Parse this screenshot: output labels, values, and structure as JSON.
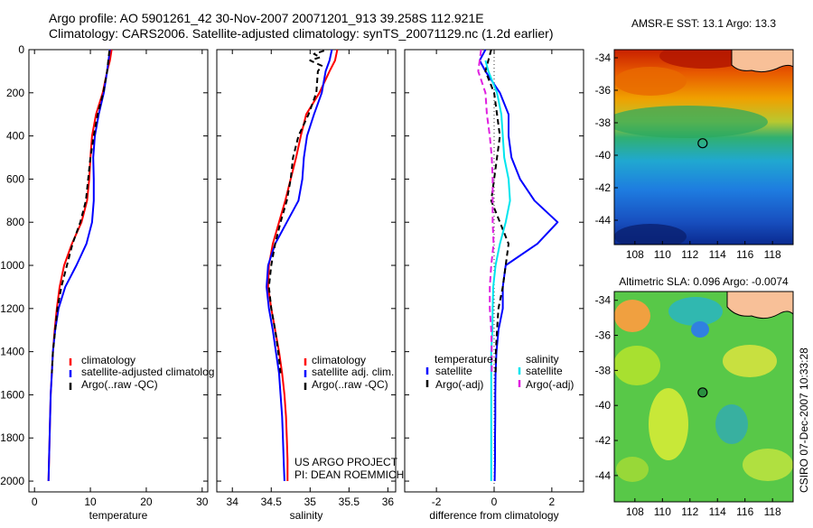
{
  "header": {
    "line1": "Argo profile: AO 5901261_42 30-Nov-2007 20071201_913 39.258S 112.921E",
    "line2": "Climatology: CARS2006. Satellite-adjusted climatology: synTS_20071129.nc (1.2d earlier)"
  },
  "side_caption": "CSIRO 07-Dec-2007 10:33:28",
  "project_note": [
    "US ARGO PROJECT",
    "PI: DEAN ROEMMICH"
  ],
  "colors": {
    "climatology": "#ff0000",
    "satellite": "#0000ff",
    "argo": "#000000",
    "sal_satellite": "#00e5ee",
    "sal_argo": "#e020e0"
  },
  "chart_data": [
    {
      "id": "temperature",
      "type": "line",
      "xlabel": "temperature",
      "ylabel": "",
      "xlim": [
        -1,
        31
      ],
      "ylim": [
        2050,
        0
      ],
      "xticks": [
        0,
        10,
        20,
        30
      ],
      "yticks": [
        0,
        200,
        400,
        600,
        800,
        1000,
        1200,
        1400,
        1600,
        1800,
        2000
      ],
      "legend": {
        "placement": "lower-right",
        "entries": [
          "climatology",
          "satellite-adjusted climatolog",
          "Argo(..raw -QC)"
        ]
      },
      "series": [
        {
          "name": "climatology",
          "color": "climatology",
          "dash": "",
          "points": [
            [
              13.8,
              0
            ],
            [
              13.5,
              50
            ],
            [
              13,
              100
            ],
            [
              12.2,
              200
            ],
            [
              11,
              300
            ],
            [
              10.3,
              400
            ],
            [
              10,
              500
            ],
            [
              9.8,
              600
            ],
            [
              9.4,
              700
            ],
            [
              8.4,
              800
            ],
            [
              6.7,
              900
            ],
            [
              5.3,
              1000
            ],
            [
              4.5,
              1100
            ],
            [
              4,
              1200
            ],
            [
              3.6,
              1300
            ],
            [
              3.3,
              1400
            ],
            [
              3.1,
              1500
            ],
            [
              2.9,
              1600
            ],
            [
              2.8,
              1700
            ],
            [
              2.7,
              1800
            ],
            [
              2.6,
              1900
            ],
            [
              2.5,
              2000
            ]
          ]
        },
        {
          "name": "satellite-adjusted climatolog",
          "color": "satellite",
          "dash": "",
          "points": [
            [
              13.5,
              0
            ],
            [
              13,
              100
            ],
            [
              12.4,
              200
            ],
            [
              11.5,
              300
            ],
            [
              10.8,
              400
            ],
            [
              10.5,
              500
            ],
            [
              10.6,
              600
            ],
            [
              10.6,
              700
            ],
            [
              10.3,
              800
            ],
            [
              9.3,
              900
            ],
            [
              7.5,
              1000
            ],
            [
              5.5,
              1100
            ],
            [
              4.3,
              1200
            ],
            [
              3.7,
              1300
            ],
            [
              3.3,
              1400
            ],
            [
              3.1,
              1500
            ],
            [
              2.9,
              1600
            ],
            [
              2.8,
              1700
            ],
            [
              2.7,
              1800
            ],
            [
              2.6,
              1900
            ],
            [
              2.5,
              2000
            ]
          ]
        },
        {
          "name": "Argo(..raw -QC)",
          "color": "argo",
          "dash": "6,4",
          "points": [
            [
              13.4,
              5
            ],
            [
              13,
              100
            ],
            [
              12.3,
              200
            ],
            [
              11.3,
              300
            ],
            [
              10.6,
              400
            ],
            [
              10,
              500
            ],
            [
              9.6,
              600
            ],
            [
              9.2,
              700
            ],
            [
              8.2,
              800
            ],
            [
              6.8,
              900
            ],
            [
              5.8,
              1000
            ],
            [
              4.8,
              1100
            ],
            [
              4.1,
              1200
            ],
            [
              3.7,
              1300
            ],
            [
              3.3,
              1400
            ],
            [
              3.1,
              1500
            ]
          ]
        }
      ]
    },
    {
      "id": "salinity",
      "type": "line",
      "xlabel": "salinity",
      "ylabel": "",
      "xlim": [
        33.8,
        36.1
      ],
      "ylim": [
        2050,
        0
      ],
      "xticks": [
        34,
        34.5,
        35,
        35.5,
        36
      ],
      "yticks": [
        0,
        200,
        400,
        600,
        800,
        1000,
        1200,
        1400,
        1600,
        1800,
        2000
      ],
      "legend": {
        "placement": "lower-right",
        "entries": [
          "climatology",
          "satellite adj. clim.",
          "Argo(..raw -QC)"
        ]
      },
      "series": [
        {
          "name": "climatology",
          "color": "climatology",
          "dash": "",
          "points": [
            [
              35.35,
              0
            ],
            [
              35.32,
              50
            ],
            [
              35.25,
              100
            ],
            [
              35.12,
              200
            ],
            [
              34.95,
              300
            ],
            [
              34.88,
              400
            ],
            [
              34.82,
              500
            ],
            [
              34.75,
              600
            ],
            [
              34.68,
              700
            ],
            [
              34.6,
              800
            ],
            [
              34.52,
              900
            ],
            [
              34.47,
              1000
            ],
            [
              34.46,
              1100
            ],
            [
              34.5,
              1200
            ],
            [
              34.55,
              1300
            ],
            [
              34.6,
              1400
            ],
            [
              34.64,
              1500
            ],
            [
              34.67,
              1600
            ],
            [
              34.69,
              1700
            ],
            [
              34.7,
              1800
            ],
            [
              34.71,
              1900
            ],
            [
              34.71,
              2000
            ]
          ]
        },
        {
          "name": "satellite adj. clim.",
          "color": "satellite",
          "dash": "",
          "points": [
            [
              35.28,
              0
            ],
            [
              35.25,
              50
            ],
            [
              35.2,
              100
            ],
            [
              35.15,
              200
            ],
            [
              35.05,
              300
            ],
            [
              34.96,
              400
            ],
            [
              34.92,
              500
            ],
            [
              34.9,
              600
            ],
            [
              34.85,
              700
            ],
            [
              34.7,
              800
            ],
            [
              34.55,
              900
            ],
            [
              34.46,
              1000
            ],
            [
              34.44,
              1100
            ],
            [
              34.47,
              1200
            ],
            [
              34.52,
              1300
            ],
            [
              34.56,
              1400
            ],
            [
              34.6,
              1500
            ],
            [
              34.62,
              1600
            ],
            [
              34.64,
              1700
            ],
            [
              34.65,
              1800
            ],
            [
              34.66,
              1900
            ],
            [
              34.67,
              2000
            ]
          ]
        },
        {
          "name": "Argo(..raw -QC)",
          "color": "argo",
          "dash": "6,4",
          "points": [
            [
              35.18,
              5
            ],
            [
              35.05,
              20
            ],
            [
              35.13,
              35
            ],
            [
              35.0,
              50
            ],
            [
              35.15,
              75
            ],
            [
              35.1,
              100
            ],
            [
              35.08,
              200
            ],
            [
              34.98,
              300
            ],
            [
              34.85,
              400
            ],
            [
              34.78,
              500
            ],
            [
              34.75,
              600
            ],
            [
              34.7,
              700
            ],
            [
              34.62,
              800
            ],
            [
              34.55,
              900
            ],
            [
              34.5,
              1000
            ],
            [
              34.47,
              1100
            ],
            [
              34.5,
              1200
            ],
            [
              34.55,
              1300
            ],
            [
              34.59,
              1400
            ],
            [
              34.62,
              1500
            ]
          ]
        }
      ]
    },
    {
      "id": "difference",
      "type": "line",
      "xlabel": "difference from climatology",
      "ylabel": "",
      "xlim": [
        -3.1,
        3.1
      ],
      "ylim": [
        2050,
        0
      ],
      "xticks": [
        -2,
        0,
        2
      ],
      "yticks": [
        0,
        200,
        400,
        600,
        800,
        1000,
        1200,
        1400,
        1600,
        1800,
        2000
      ],
      "zero_line": true,
      "legend": {
        "placement": "lower",
        "group_titles": [
          "temperature",
          "salinity"
        ],
        "entries": [
          "satellite",
          "Argo(-adj)",
          "satellite",
          "Argo(-adj)"
        ]
      },
      "series": [
        {
          "name": "satellite",
          "group": "temperature",
          "color": "satellite",
          "dash": "",
          "points": [
            [
              -0.3,
              0
            ],
            [
              -0.5,
              50
            ],
            [
              -0.3,
              100
            ],
            [
              0.2,
              200
            ],
            [
              0.5,
              300
            ],
            [
              0.5,
              400
            ],
            [
              0.6,
              500
            ],
            [
              0.9,
              600
            ],
            [
              1.4,
              700
            ],
            [
              2.2,
              800
            ],
            [
              1.5,
              900
            ],
            [
              0.4,
              1000
            ],
            [
              0.3,
              1100
            ],
            [
              0.3,
              1200
            ],
            [
              0.15,
              1300
            ],
            [
              0.08,
              1400
            ],
            [
              0.05,
              1500
            ],
            [
              0.04,
              1600
            ],
            [
              0.04,
              1700
            ],
            [
              0.03,
              1800
            ],
            [
              0.03,
              1900
            ],
            [
              0.02,
              2000
            ]
          ]
        },
        {
          "name": "Argo(-adj)",
          "group": "temperature",
          "color": "argo",
          "dash": "6,4",
          "points": [
            [
              -0.1,
              0
            ],
            [
              -0.3,
              100
            ],
            [
              0,
              200
            ],
            [
              0.1,
              300
            ],
            [
              0.2,
              400
            ],
            [
              0.1,
              500
            ],
            [
              0,
              600
            ],
            [
              -0.1,
              700
            ],
            [
              0.2,
              800
            ],
            [
              0.5,
              900
            ],
            [
              0.4,
              1000
            ],
            [
              0.3,
              1100
            ],
            [
              0.15,
              1200
            ],
            [
              0.1,
              1300
            ],
            [
              0.06,
              1400
            ],
            [
              0.05,
              1500
            ]
          ]
        },
        {
          "name": "satellite",
          "group": "salinity",
          "color": "sal_satellite",
          "dash": "",
          "points": [
            [
              -0.3,
              50
            ],
            [
              -0.2,
              100
            ],
            [
              0.1,
              200
            ],
            [
              0.25,
              300
            ],
            [
              0.3,
              400
            ],
            [
              0.35,
              500
            ],
            [
              0.5,
              600
            ],
            [
              0.55,
              700
            ],
            [
              0.4,
              800
            ],
            [
              0.2,
              900
            ],
            [
              0.05,
              1000
            ],
            [
              -0.03,
              1100
            ],
            [
              -0.05,
              1200
            ],
            [
              -0.06,
              1300
            ],
            [
              -0.1,
              1400
            ],
            [
              -0.1,
              1500
            ],
            [
              -0.1,
              1600
            ],
            [
              -0.1,
              1700
            ],
            [
              -0.1,
              1800
            ],
            [
              -0.1,
              1900
            ],
            [
              -0.1,
              2000
            ]
          ]
        },
        {
          "name": "Argo(-adj)",
          "group": "salinity",
          "color": "sal_argo",
          "dash": "7,4",
          "points": [
            [
              -0.45,
              0
            ],
            [
              -0.55,
              100
            ],
            [
              -0.3,
              200
            ],
            [
              -0.25,
              300
            ],
            [
              -0.15,
              400
            ],
            [
              -0.08,
              500
            ],
            [
              -0.05,
              600
            ],
            [
              -0.05,
              700
            ],
            [
              -0.05,
              800
            ],
            [
              -0.02,
              900
            ],
            [
              -0.1,
              1000
            ],
            [
              -0.15,
              1100
            ],
            [
              -0.15,
              1200
            ],
            [
              -0.1,
              1300
            ],
            [
              -0.08,
              1400
            ],
            [
              -0.08,
              1500
            ]
          ]
        }
      ]
    },
    {
      "id": "sst_map",
      "type": "heatmap",
      "title": "AMSR-E SST: 13.1 Argo: 13.3",
      "xlim": [
        106.5,
        119.5
      ],
      "ylim": [
        -45.5,
        -33.5
      ],
      "xticks": [
        108,
        110,
        112,
        114,
        116,
        118
      ],
      "yticks": [
        -34,
        -36,
        -38,
        -40,
        -42,
        -44
      ],
      "marker": [
        112.92,
        -39.26
      ]
    },
    {
      "id": "sla_map",
      "type": "heatmap",
      "title": "Altimetric SLA: 0.096 Argo: -0.0074",
      "xlim": [
        106.5,
        119.5
      ],
      "ylim": [
        -45.5,
        -33.5
      ],
      "xticks": [
        108,
        110,
        112,
        114,
        116,
        118
      ],
      "yticks": [
        -34,
        -36,
        -38,
        -40,
        -42,
        -44
      ],
      "marker": [
        112.92,
        -39.26
      ]
    }
  ]
}
